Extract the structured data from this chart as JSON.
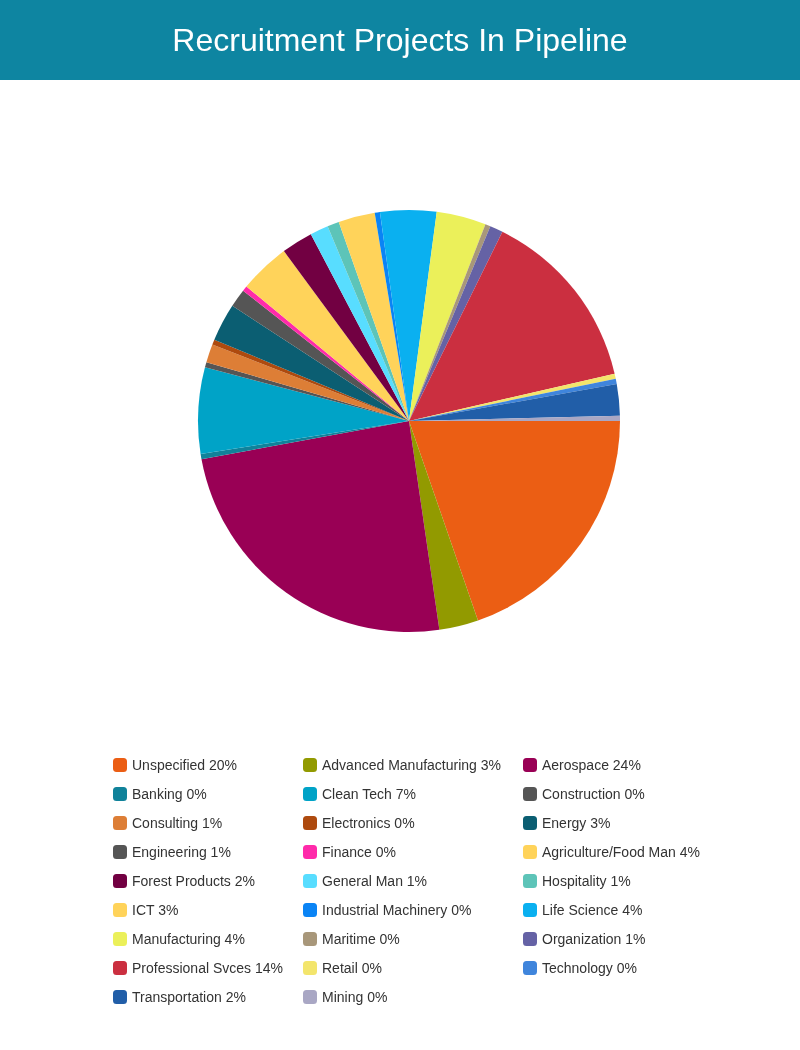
{
  "chart_data": {
    "type": "pie",
    "title": "Recruitment Projects In Pipeline",
    "categories": [
      "Unspecified",
      "Advanced Manufacturing",
      "Aerospace",
      "Banking",
      "Clean Tech",
      "Construction",
      "Consulting",
      "Electronics",
      "Energy",
      "Engineering",
      "Finance",
      "Agriculture/Food Man",
      "Forest Products",
      "General Man",
      "Hospitality",
      "ICT",
      "Industrial Machinery",
      "Life Science",
      "Manufacturing",
      "Maritime",
      "Organization",
      "Professional Svces",
      "Retail",
      "Technology",
      "Transportation",
      "Mining"
    ],
    "values": [
      19.7,
      3.0,
      24.4,
      0.4,
      6.6,
      0.4,
      1.4,
      0.4,
      2.9,
      1.4,
      0.4,
      3.9,
      2.4,
      1.4,
      0.9,
      2.8,
      0.4,
      4.3,
      3.8,
      0.4,
      1.0,
      14.1,
      0.4,
      0.4,
      2.4,
      0.4
    ],
    "value_labels": [
      "20%",
      "3%",
      "24%",
      "0%",
      "7%",
      "0%",
      "1%",
      "0%",
      "3%",
      "1%",
      "0%",
      "4%",
      "2%",
      "1%",
      "1%",
      "3%",
      "0%",
      "4%",
      "4%",
      "0%",
      "1%",
      "14%",
      "0%",
      "0%",
      "2%",
      "0%"
    ],
    "colors": [
      "#eb5e14",
      "#929a00",
      "#990055",
      "#10829a",
      "#00a3c7",
      "#555555",
      "#dd7e36",
      "#ae4a0e",
      "#0b5e72",
      "#555555",
      "#ff2aaa",
      "#ffd35a",
      "#720042",
      "#58ddff",
      "#5dc4b8",
      "#ffd35a",
      "#0a84f5",
      "#0ab0f0",
      "#ebf05a",
      "#a8977a",
      "#6562a5",
      "#cb2f40",
      "#f3e56c",
      "#3f85dc",
      "#215ea8",
      "#a9a7c4"
    ],
    "legend": "bottom"
  }
}
